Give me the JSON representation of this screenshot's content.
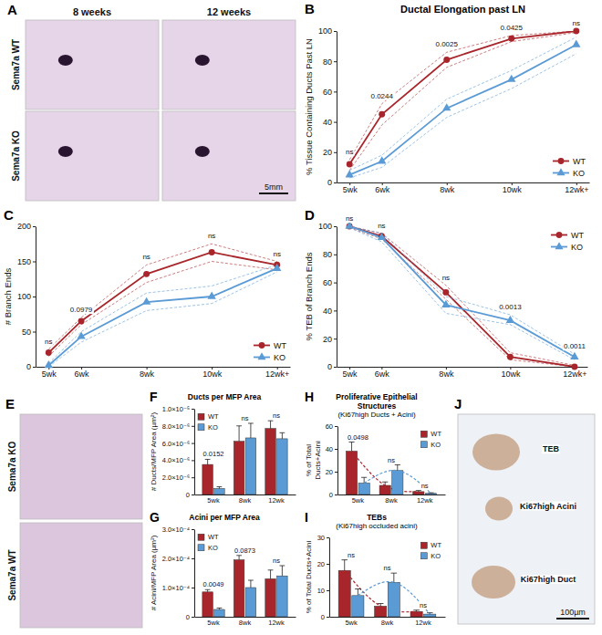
{
  "images": [
    {
      "panel": "A",
      "column_labels": [
        "8 weeks",
        "12 weeks"
      ],
      "row_labels": [
        "Sema7a WT",
        "Sema7a KO"
      ],
      "scale_bar": "5mm"
    },
    {
      "panel": "E",
      "row_labels": [
        "Sema7a KO",
        "Sema7a WT"
      ]
    },
    {
      "panel": "J",
      "labels": [
        "TEB",
        "Ki67high Acini",
        "Ki67high Duct"
      ],
      "scale_bar": "100µm"
    }
  ],
  "chart_data": [
    {
      "panel": "B",
      "type": "line",
      "title": "Ductal Elongation past LN",
      "y_label": "% Tissue Containing Ducts Past LN",
      "x": [
        5,
        6,
        8,
        10,
        12
      ],
      "xlim": [
        4.6,
        12.4
      ],
      "xticks": [
        {
          "value": 5,
          "label": "5wk"
        },
        {
          "value": 6,
          "label": "6wk"
        },
        {
          "value": 8,
          "label": "8wk"
        },
        {
          "value": 10,
          "label": "10wk"
        },
        {
          "value": 12,
          "label": "12wk+"
        }
      ],
      "ylim": [
        0,
        100
      ],
      "yticks": [
        0,
        20,
        40,
        60,
        80,
        100
      ],
      "series": [
        {
          "name": "WT",
          "color": "#a8262b",
          "marker": "circle",
          "values": [
            12,
            45,
            81,
            95,
            100
          ],
          "lower": [
            8,
            38,
            76,
            93,
            99
          ],
          "upper": [
            15,
            52,
            86,
            97,
            100
          ]
        },
        {
          "name": "KO",
          "color": "#5b9bd5",
          "marker": "triangle",
          "values": [
            5,
            14,
            49,
            68,
            91
          ],
          "lower": [
            3,
            10,
            43,
            62,
            85
          ],
          "upper": [
            8,
            18,
            55,
            74,
            96
          ]
        }
      ],
      "p_values": [
        "ns",
        "0.0244",
        "0.0025",
        "0.0425",
        "ns"
      ],
      "legend": "bottom-right",
      "grid": false
    },
    {
      "panel": "C",
      "type": "line",
      "y_label": "# Branch Ends",
      "x": [
        5,
        6,
        8,
        10,
        12
      ],
      "xlim": [
        4.6,
        12.4
      ],
      "xticks": [
        {
          "value": 5,
          "label": "5wk"
        },
        {
          "value": 6,
          "label": "6wk"
        },
        {
          "value": 8,
          "label": "8wk"
        },
        {
          "value": 10,
          "label": "10wk"
        },
        {
          "value": 12,
          "label": "12wk+"
        }
      ],
      "ylim": [
        0,
        200
      ],
      "yticks": [
        0,
        50,
        100,
        150,
        200
      ],
      "series": [
        {
          "name": "WT",
          "color": "#a8262b",
          "marker": "circle",
          "values": [
            20,
            65,
            132,
            163,
            145
          ],
          "lower": [
            15,
            60,
            120,
            150,
            138
          ],
          "upper": [
            25,
            70,
            145,
            175,
            150
          ]
        },
        {
          "name": "KO",
          "color": "#5b9bd5",
          "marker": "triangle",
          "values": [
            2,
            43,
            92,
            100,
            140
          ],
          "lower": [
            0,
            35,
            80,
            90,
            135
          ],
          "upper": [
            5,
            50,
            105,
            115,
            145
          ]
        }
      ],
      "p_values": [
        "ns",
        "0.0979",
        "ns",
        "ns",
        "ns"
      ],
      "legend": "bottom-right",
      "grid": false
    },
    {
      "panel": "D",
      "type": "line",
      "y_label": "% TEB of Branch Ends",
      "x": [
        5,
        6,
        8,
        10,
        12
      ],
      "xlim": [
        4.6,
        12.4
      ],
      "xticks": [
        {
          "value": 5,
          "label": "5wk"
        },
        {
          "value": 6,
          "label": "6wk"
        },
        {
          "value": 8,
          "label": "8wk"
        },
        {
          "value": 10,
          "label": "10wk"
        },
        {
          "value": 12,
          "label": "12wk+"
        }
      ],
      "ylim": [
        0,
        100
      ],
      "yticks": [
        0,
        20,
        40,
        60,
        80,
        100
      ],
      "series": [
        {
          "name": "WT",
          "color": "#a8262b",
          "marker": "circle",
          "values": [
            100,
            93,
            53,
            7,
            0
          ],
          "lower": [
            99,
            91,
            48,
            5,
            0
          ],
          "upper": [
            100,
            95,
            58,
            10,
            1
          ]
        },
        {
          "name": "KO",
          "color": "#5b9bd5",
          "marker": "triangle",
          "values": [
            100,
            92,
            44,
            33,
            7
          ],
          "lower": [
            99,
            89,
            38,
            30,
            5
          ],
          "upper": [
            100,
            95,
            50,
            37,
            9
          ]
        }
      ],
      "p_values": [
        "ns",
        "ns",
        "ns",
        "0.0013",
        "0.0011"
      ],
      "legend": "top-right",
      "grid": false
    },
    {
      "panel": "F",
      "type": "bar",
      "title": "Ducts per MFP Area",
      "y_label": "# Ducts/MFP Area (µm²)",
      "categories": [
        "5wk",
        "8wk",
        "12wk"
      ],
      "ylim": [
        0,
        1e-05
      ],
      "yticks": [
        0,
        {
          "value": 2e-06,
          "label": "2.0×10⁻⁶"
        },
        {
          "value": 4e-06,
          "label": "4.0×10⁻⁶"
        },
        {
          "value": 6e-06,
          "label": "6.0×10⁻⁶"
        },
        {
          "value": 8e-06,
          "label": "8.0×10⁻⁶"
        },
        {
          "value": 1e-05,
          "label": "1.0×10⁻⁵"
        }
      ],
      "series": [
        {
          "name": "WT",
          "color": "#a8262b",
          "values": [
            3.5e-06,
            6.2e-06,
            7.7e-06
          ],
          "errors": [
            6e-07,
            1.8e-06,
            9e-07
          ]
        },
        {
          "name": "KO",
          "color": "#5b9bd5",
          "values": [
            7e-07,
            6.6e-06,
            6.5e-06
          ],
          "errors": [
            2e-07,
            1.7e-06,
            7e-07
          ]
        }
      ],
      "p_values": [
        "0.0152",
        "ns",
        "ns"
      ],
      "legend": "top-left",
      "grid": false
    },
    {
      "panel": "G",
      "type": "bar",
      "title": "Acini per MFP Area",
      "y_label": "# Acini/MFP Area (µm²)",
      "categories": [
        "5wk",
        "8wk",
        "12wk"
      ],
      "ylim": [
        0,
        0.0003
      ],
      "yticks": [
        0,
        {
          "value": 0.0001,
          "label": "1.0×10⁻⁴"
        },
        {
          "value": 0.0002,
          "label": "2.0×10⁻⁴"
        },
        {
          "value": 0.0003,
          "label": "3.0×10⁻⁴"
        }
      ],
      "series": [
        {
          "name": "WT",
          "color": "#a8262b",
          "values": [
            8.5e-05,
            0.000195,
            0.00013
          ],
          "errors": [
            8e-06,
            1.5e-05,
            3e-05
          ]
        },
        {
          "name": "KO",
          "color": "#5b9bd5",
          "values": [
            2.5e-05,
            0.0001,
            0.00014
          ],
          "errors": [
            5e-06,
            2.5e-05,
            3.5e-05
          ]
        }
      ],
      "p_values": [
        "0.0049",
        "0.0873",
        "ns"
      ],
      "legend": "top-left",
      "grid": false
    },
    {
      "panel": "H",
      "type": "bar",
      "title": "Proliferative Epithelial Structures",
      "subtitle": "(Ki67high Ducts + Acini)",
      "y_label": "% of Total Ducts+Acini",
      "categories": [
        "5wk",
        "8wk",
        "12wk"
      ],
      "ylim": [
        0,
        60
      ],
      "yticks": [
        0,
        20,
        40,
        60
      ],
      "series": [
        {
          "name": "WT",
          "color": "#a8262b",
          "line_style": "dashed",
          "values": [
            38,
            8,
            2.5
          ],
          "errors": [
            8,
            3,
            1
          ]
        },
        {
          "name": "KO",
          "color": "#5b9bd5",
          "line_style": "dashed",
          "values": [
            10,
            21,
            1
          ],
          "errors": [
            5,
            5,
            0.5
          ]
        }
      ],
      "p_values": [
        "0.0498",
        "ns",
        "ns"
      ],
      "legend": "top-right",
      "grid": false
    },
    {
      "panel": "I",
      "type": "bar",
      "title": "TEBs",
      "subtitle": "(Ki67high occluded acini)",
      "y_label": "% of Total Ducts+Acini",
      "categories": [
        "5wk",
        "8wk",
        "12wk"
      ],
      "ylim": [
        0,
        30
      ],
      "yticks": [
        0,
        10,
        20,
        30
      ],
      "series": [
        {
          "name": "WT",
          "color": "#a8262b",
          "line_style": "dashed",
          "values": [
            17.5,
            4,
            2
          ],
          "errors": [
            4,
            1,
            0.5
          ]
        },
        {
          "name": "KO",
          "color": "#5b9bd5",
          "line_style": "dashed",
          "values": [
            8,
            13,
            1
          ],
          "errors": [
            2.5,
            3.5,
            0.5
          ]
        }
      ],
      "p_values": [
        "ns",
        "ns",
        "ns"
      ],
      "legend": "top-right",
      "grid": false
    }
  ]
}
